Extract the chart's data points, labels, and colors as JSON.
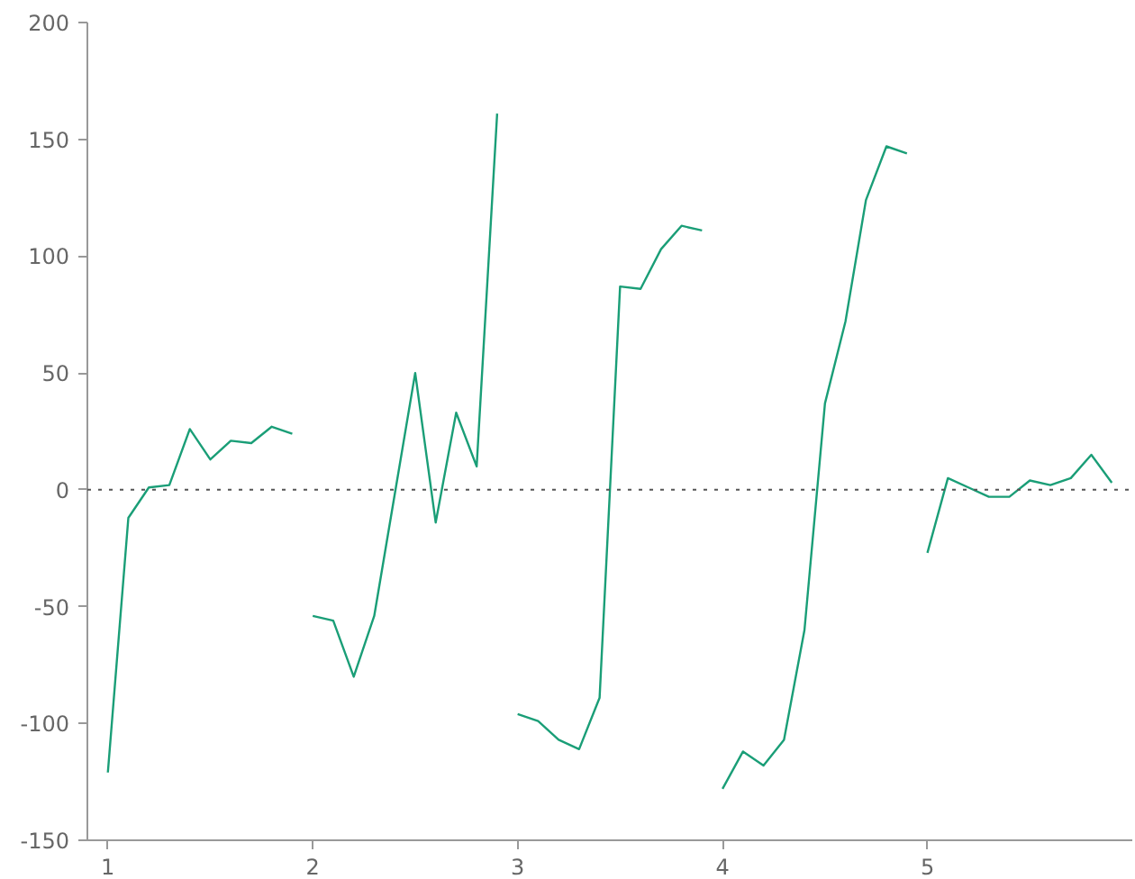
{
  "chart_data": {
    "type": "line",
    "x": [
      1.0,
      1.1,
      1.2,
      1.3,
      1.4,
      1.5,
      1.6,
      1.7,
      1.8,
      1.9,
      1.95,
      2.0,
      2.1,
      2.2,
      2.3,
      2.4,
      2.5,
      2.6,
      2.7,
      2.8,
      2.9,
      2.95,
      3.0,
      3.1,
      3.2,
      3.3,
      3.4,
      3.5,
      3.6,
      3.7,
      3.8,
      3.9,
      3.95,
      4.0,
      4.1,
      4.2,
      4.3,
      4.4,
      4.5,
      4.6,
      4.7,
      4.8,
      4.9,
      4.95,
      5.0,
      5.1,
      5.2,
      5.3,
      5.4,
      5.5,
      5.6,
      5.7,
      5.8,
      5.9
    ],
    "series": [
      {
        "color": "#1a9e77",
        "values": [
          -121,
          -12,
          1,
          2,
          26,
          13,
          21,
          20,
          27,
          24,
          null,
          -54,
          -56,
          -80,
          -54,
          -2,
          50,
          -14,
          33,
          10,
          161,
          null,
          -96,
          -99,
          -107,
          -111,
          -89,
          87,
          86,
          103,
          113,
          111,
          null,
          -128,
          -112,
          -118,
          -107,
          -60,
          37,
          72,
          124,
          147,
          144,
          null,
          -27,
          5,
          1,
          -3,
          -3,
          4,
          2,
          5,
          15,
          3
        ]
      }
    ],
    "xlim": [
      0.9,
      6.0
    ],
    "ylim": [
      -150,
      200
    ],
    "xticks": [
      1,
      2,
      3,
      4,
      5
    ],
    "yticks": [
      -150,
      -100,
      -50,
      0,
      50,
      100,
      150,
      200
    ],
    "ref_lines": [
      {
        "axis": "y",
        "value": 0,
        "color": "#555555",
        "line_style": "dotted"
      }
    ],
    "grid": false,
    "marker": "none",
    "line_style": "solid"
  }
}
